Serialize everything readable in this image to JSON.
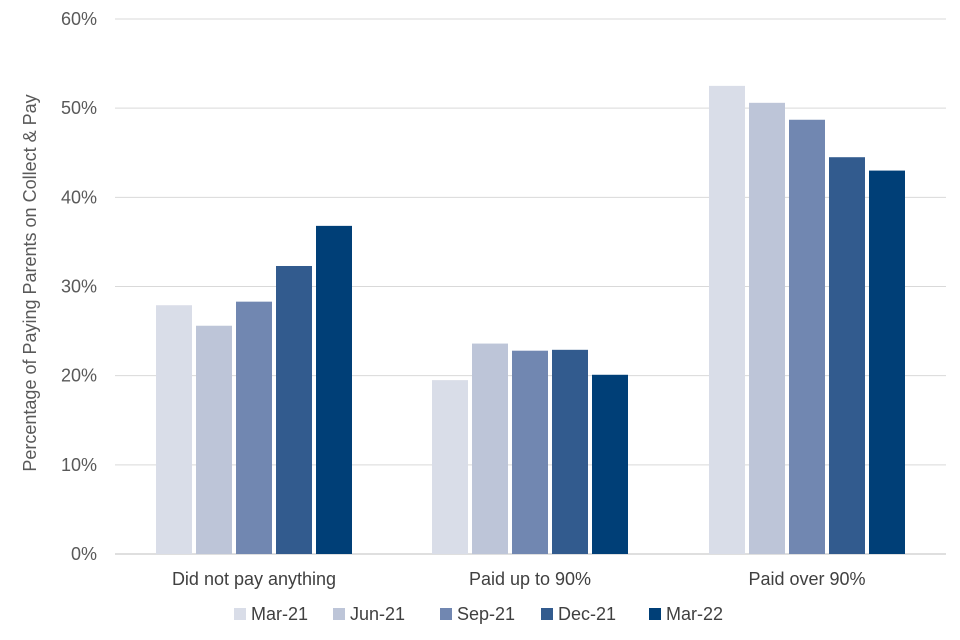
{
  "chart_data": {
    "type": "bar",
    "title": "",
    "xlabel": "",
    "ylabel": "Percentage of Paying Parents on Collect & Pay",
    "categories": [
      "Did not pay anything",
      "Paid up to 90%",
      "Paid over 90%"
    ],
    "series": [
      {
        "name": "Mar-21",
        "color": "#d9dde8",
        "values": [
          27.9,
          19.5,
          52.5
        ]
      },
      {
        "name": "Jun-21",
        "color": "#bdc5d8",
        "values": [
          25.6,
          23.6,
          50.6
        ]
      },
      {
        "name": "Sep-21",
        "color": "#7187b1",
        "values": [
          28.3,
          22.8,
          48.7
        ]
      },
      {
        "name": "Dec-21",
        "color": "#325b8e",
        "values": [
          32.3,
          22.9,
          44.5
        ]
      },
      {
        "name": "Mar-22",
        "color": "#003f77",
        "values": [
          36.8,
          20.1,
          43.0
        ]
      }
    ],
    "ylim": [
      0,
      60
    ],
    "yticks": [
      0,
      10,
      20,
      30,
      40,
      50,
      60
    ],
    "ytick_labels": [
      "0%",
      "10%",
      "20%",
      "30%",
      "40%",
      "50%",
      "60%"
    ],
    "grid": true,
    "legend_position": "bottom"
  }
}
